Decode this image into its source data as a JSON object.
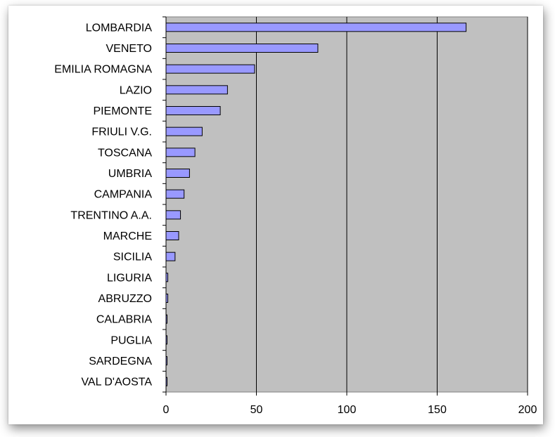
{
  "chart_data": {
    "type": "bar",
    "orientation": "horizontal",
    "categories": [
      "LOMBARDIA",
      "VENETO",
      "EMILIA ROMAGNA",
      "LAZIO",
      "PIEMONTE",
      "FRIULI V.G.",
      "TOSCANA",
      "UMBRIA",
      "CAMPANIA",
      "TRENTINO A.A.",
      "MARCHE",
      "SICILIA",
      "LIGURIA",
      "ABRUZZO",
      "CALABRIA",
      "PUGLIA",
      "SARDEGNA",
      "VAL D'AOSTA"
    ],
    "values": [
      166,
      84,
      49,
      34,
      30,
      20,
      16,
      13,
      10,
      8,
      7,
      5,
      1,
      1,
      0.5,
      0.5,
      0.5,
      0.5
    ],
    "xlim": [
      0,
      200
    ],
    "xticks": [
      "0",
      "50",
      "100",
      "150",
      "200"
    ],
    "xtick_values": [
      0,
      50,
      100,
      150,
      200
    ],
    "grid": "vertical lines at major ticks",
    "legend": "none",
    "colors": {
      "bar_fill": "#9999ff",
      "plot_background": "#c0c0c0",
      "gridline": "#000000"
    }
  }
}
